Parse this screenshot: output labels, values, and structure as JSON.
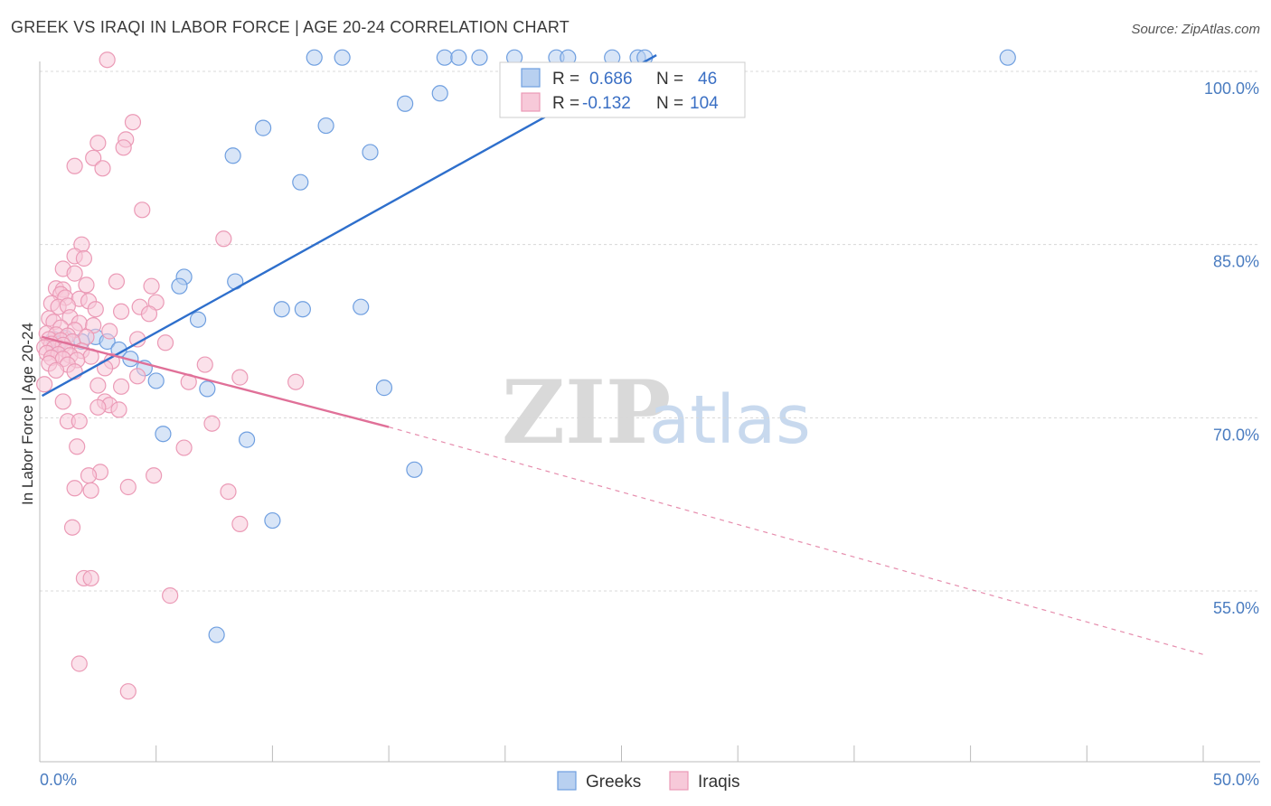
{
  "title": "GREEK VS IRAQI IN LABOR FORCE | AGE 20-24 CORRELATION CHART",
  "source": "Source: ZipAtlas.com",
  "chart_data": {
    "type": "scatter",
    "title": "GREEK VS IRAQI IN LABOR FORCE | AGE 20-24 CORRELATION CHART",
    "xlabel": "",
    "ylabel": "In Labor Force | Age 20-24",
    "xlim": [
      0,
      50
    ],
    "ylim": [
      40,
      102
    ],
    "x_tick_labels": [
      "0.0%",
      "50.0%"
    ],
    "y_ticks": [
      55,
      70,
      85,
      100
    ],
    "y_tick_labels": [
      "55.0%",
      "70.0%",
      "85.0%",
      "100.0%"
    ],
    "grid": true,
    "watermark": {
      "part1": "ZIP",
      "part2": "atlas"
    },
    "legend": [
      {
        "r_label": "R =",
        "r_value": "0.686",
        "n_label": "N =",
        "n_value": "46"
      },
      {
        "r_label": "R =",
        "r_value": "-0.132",
        "n_label": "N =",
        "n_value": "104"
      }
    ],
    "series": [
      {
        "name": "Greeks",
        "color": "#6f9fe0",
        "fill": "#b8d0f0",
        "line_color": "#2e6fcc",
        "trend": {
          "x0": 0.1,
          "y0": 71.9,
          "x1": 26.5,
          "y1": 101.4
        },
        "points": [
          [
            11.8,
            101.2
          ],
          [
            13.0,
            101.2
          ],
          [
            17.4,
            101.2
          ],
          [
            18.0,
            101.2
          ],
          [
            18.9,
            101.2
          ],
          [
            20.4,
            101.2
          ],
          [
            22.2,
            101.2
          ],
          [
            22.7,
            101.2
          ],
          [
            24.6,
            101.2
          ],
          [
            25.7,
            101.2
          ],
          [
            26.0,
            101.2
          ],
          [
            41.6,
            101.2
          ],
          [
            17.2,
            98.1
          ],
          [
            15.7,
            97.2
          ],
          [
            9.6,
            95.1
          ],
          [
            12.3,
            95.3
          ],
          [
            14.2,
            93.0
          ],
          [
            8.3,
            92.7
          ],
          [
            11.2,
            90.4
          ],
          [
            6.2,
            82.2
          ],
          [
            8.4,
            81.8
          ],
          [
            6.0,
            81.4
          ],
          [
            10.4,
            79.4
          ],
          [
            11.3,
            79.4
          ],
          [
            13.8,
            79.6
          ],
          [
            6.8,
            78.5
          ],
          [
            0.6,
            76.8
          ],
          [
            1.1,
            76.9
          ],
          [
            2.4,
            77.0
          ],
          [
            2.9,
            76.6
          ],
          [
            0.8,
            76.4
          ],
          [
            1.8,
            76.6
          ],
          [
            3.4,
            75.9
          ],
          [
            3.9,
            75.1
          ],
          [
            4.5,
            74.3
          ],
          [
            5.0,
            73.2
          ],
          [
            7.2,
            72.5
          ],
          [
            14.8,
            72.6
          ],
          [
            5.3,
            68.6
          ],
          [
            8.9,
            68.1
          ],
          [
            16.1,
            65.5
          ],
          [
            10.0,
            61.1
          ],
          [
            7.6,
            51.2
          ]
        ]
      },
      {
        "name": "Iraqis",
        "color": "#eb9ab6",
        "fill": "#f7c9d9",
        "line_color": "#e07098",
        "trend": {
          "x0": 0.1,
          "y0": 77.0,
          "x1": 15.0,
          "y1": 69.2
        },
        "trend_dashed": {
          "x0": 15.0,
          "y0": 69.2,
          "x1": 50.0,
          "y1": 49.5
        },
        "points": [
          [
            2.9,
            101.0
          ],
          [
            4.0,
            95.6
          ],
          [
            3.7,
            94.1
          ],
          [
            2.5,
            93.8
          ],
          [
            3.6,
            93.4
          ],
          [
            2.3,
            92.5
          ],
          [
            1.5,
            91.8
          ],
          [
            2.7,
            91.6
          ],
          [
            4.4,
            88.0
          ],
          [
            7.9,
            85.5
          ],
          [
            1.8,
            85.0
          ],
          [
            1.5,
            84.0
          ],
          [
            1.9,
            83.8
          ],
          [
            1.0,
            82.9
          ],
          [
            1.5,
            82.5
          ],
          [
            3.3,
            81.8
          ],
          [
            2.0,
            81.5
          ],
          [
            4.8,
            81.4
          ],
          [
            0.7,
            81.2
          ],
          [
            1.0,
            81.1
          ],
          [
            0.9,
            80.7
          ],
          [
            1.1,
            80.4
          ],
          [
            1.7,
            80.3
          ],
          [
            2.1,
            80.1
          ],
          [
            5.0,
            80.0
          ],
          [
            0.5,
            79.9
          ],
          [
            0.8,
            79.6
          ],
          [
            1.2,
            79.7
          ],
          [
            4.3,
            79.6
          ],
          [
            2.4,
            79.4
          ],
          [
            3.5,
            79.2
          ],
          [
            4.7,
            79.0
          ],
          [
            0.4,
            78.6
          ],
          [
            1.3,
            78.7
          ],
          [
            0.6,
            78.3
          ],
          [
            1.7,
            78.2
          ],
          [
            2.3,
            78.0
          ],
          [
            0.9,
            77.8
          ],
          [
            1.5,
            77.6
          ],
          [
            3.0,
            77.5
          ],
          [
            0.3,
            77.3
          ],
          [
            0.7,
            77.2
          ],
          [
            1.2,
            77.1
          ],
          [
            2.0,
            77.0
          ],
          [
            0.4,
            76.8
          ],
          [
            0.9,
            76.7
          ],
          [
            1.4,
            76.6
          ],
          [
            4.2,
            76.8
          ],
          [
            0.5,
            76.4
          ],
          [
            1.0,
            76.3
          ],
          [
            5.4,
            76.5
          ],
          [
            0.2,
            76.1
          ],
          [
            0.6,
            76.0
          ],
          [
            1.1,
            75.9
          ],
          [
            1.8,
            75.8
          ],
          [
            0.3,
            75.6
          ],
          [
            0.8,
            75.5
          ],
          [
            1.3,
            75.4
          ],
          [
            2.2,
            75.3
          ],
          [
            0.5,
            75.2
          ],
          [
            1.0,
            75.1
          ],
          [
            1.6,
            75.0
          ],
          [
            3.1,
            74.9
          ],
          [
            0.4,
            74.7
          ],
          [
            1.2,
            74.6
          ],
          [
            7.1,
            74.6
          ],
          [
            2.8,
            74.3
          ],
          [
            0.7,
            74.1
          ],
          [
            1.5,
            74.0
          ],
          [
            4.2,
            73.6
          ],
          [
            8.6,
            73.5
          ],
          [
            6.4,
            73.1
          ],
          [
            11.0,
            73.1
          ],
          [
            0.2,
            72.9
          ],
          [
            2.5,
            72.8
          ],
          [
            3.5,
            72.7
          ],
          [
            2.8,
            71.4
          ],
          [
            1.0,
            71.4
          ],
          [
            3.0,
            71.1
          ],
          [
            2.5,
            70.9
          ],
          [
            3.4,
            70.7
          ],
          [
            1.2,
            69.7
          ],
          [
            1.7,
            69.7
          ],
          [
            7.4,
            69.5
          ],
          [
            1.6,
            67.5
          ],
          [
            6.2,
            67.4
          ],
          [
            2.6,
            65.3
          ],
          [
            4.9,
            65.0
          ],
          [
            2.1,
            65.0
          ],
          [
            3.8,
            64.0
          ],
          [
            8.1,
            63.6
          ],
          [
            1.5,
            63.9
          ],
          [
            2.2,
            63.7
          ],
          [
            8.6,
            60.8
          ],
          [
            1.4,
            60.5
          ],
          [
            1.9,
            56.1
          ],
          [
            2.2,
            56.1
          ],
          [
            5.6,
            54.6
          ],
          [
            1.7,
            48.7
          ],
          [
            3.8,
            46.3
          ]
        ]
      }
    ]
  }
}
